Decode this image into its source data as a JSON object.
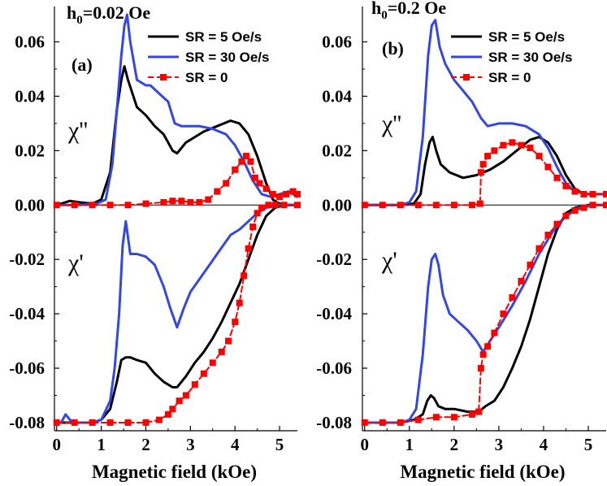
{
  "chart_data": [
    {
      "type": "line",
      "panel": "(a)",
      "title": "h0=0.02 Oe",
      "title_main": "h",
      "title_sub": "0",
      "title_rest": "=0.02 Oe",
      "xlabel": "Magnetic field (kOe)",
      "ylabel": "",
      "xlim": [
        -0.05,
        5.4
      ],
      "ylim": [
        -0.083,
        0.073
      ],
      "xticks": [
        0,
        1,
        2,
        3,
        4,
        5
      ],
      "yticks": [
        0.06,
        0.04,
        0.02,
        0.0,
        -0.02,
        -0.04,
        -0.06,
        -0.08
      ],
      "ytick_labels": [
        "0.06",
        "0.04",
        "0.02",
        "0.00",
        "-0.02",
        "-0.04",
        "-0.06",
        "-0.08"
      ],
      "annotations": [
        "χ''",
        "χ'"
      ],
      "legend": [
        "SR = 5 Oe/s",
        "SR = 30 Oe/s",
        "SR = 0"
      ],
      "series": [
        {
          "name": "SR = 5 Oe/s",
          "component": "chi2",
          "color": "#000000",
          "x": [
            0,
            0.3,
            0.5,
            0.8,
            1.0,
            1.2,
            1.35,
            1.45,
            1.52,
            1.6,
            1.8,
            2.0,
            2.2,
            2.4,
            2.6,
            2.7,
            2.9,
            3.1,
            3.3,
            3.6,
            3.9,
            4.1,
            4.3,
            4.5,
            4.7,
            4.85,
            5.0,
            5.2,
            5.4
          ],
          "y": [
            0,
            0.0015,
            0.001,
            0.0005,
            0.002,
            0.012,
            0.035,
            0.046,
            0.051,
            0.046,
            0.036,
            0.033,
            0.029,
            0.026,
            0.02,
            0.019,
            0.023,
            0.025,
            0.027,
            0.029,
            0.031,
            0.03,
            0.026,
            0.018,
            0.008,
            0.002,
            0.0005,
            0,
            0
          ]
        },
        {
          "name": "SR = 30 Oe/s",
          "component": "chi2",
          "color": "#3346e6",
          "x": [
            0,
            0.5,
            0.9,
            1.1,
            1.25,
            1.35,
            1.45,
            1.52,
            1.58,
            1.65,
            1.8,
            2.0,
            2.1,
            2.3,
            2.5,
            2.65,
            2.8,
            3.0,
            3.2,
            3.5,
            3.8,
            4.0,
            4.2,
            4.4,
            4.6,
            4.8,
            5.0,
            5.2,
            5.4
          ],
          "y": [
            0,
            0,
            0.0005,
            0.002,
            0.015,
            0.035,
            0.055,
            0.066,
            0.07,
            0.06,
            0.046,
            0.044,
            0.044,
            0.041,
            0.038,
            0.03,
            0.029,
            0.029,
            0.029,
            0.028,
            0.026,
            0.022,
            0.016,
            0.009,
            0.004,
            0.003,
            0.004,
            0.005,
            0.003
          ]
        },
        {
          "name": "SR = 0",
          "component": "chi2",
          "color": "#ff0000",
          "x": [
            0,
            0.4,
            0.8,
            1.2,
            1.6,
            2.0,
            2.4,
            2.6,
            2.8,
            3.0,
            3.2,
            3.4,
            3.6,
            3.8,
            4.0,
            4.15,
            4.25,
            4.35,
            4.45,
            4.55,
            4.7,
            4.85,
            5.0,
            5.15,
            5.3,
            5.4
          ],
          "y": [
            0,
            0,
            0,
            0,
            0,
            0.0005,
            0.001,
            0.0015,
            0.0015,
            0.001,
            0.001,
            0.002,
            0.005,
            0.008,
            0.013,
            0.016,
            0.018,
            0.016,
            0.01,
            0.008,
            0.006,
            0.004,
            0.003,
            0.004,
            0.005,
            0.004
          ]
        },
        {
          "name": "SR = 5 Oe/s",
          "component": "chi1",
          "color": "#000000",
          "x": [
            0,
            0.5,
            0.8,
            1.0,
            1.2,
            1.35,
            1.45,
            1.55,
            1.65,
            1.8,
            2.0,
            2.2,
            2.4,
            2.6,
            2.7,
            2.9,
            3.1,
            3.3,
            3.5,
            3.7,
            3.9,
            4.1,
            4.3,
            4.5,
            4.7,
            4.9,
            5.1,
            5.4
          ],
          "y": [
            -0.08,
            -0.08,
            -0.08,
            -0.079,
            -0.075,
            -0.065,
            -0.057,
            -0.056,
            -0.056,
            -0.057,
            -0.058,
            -0.062,
            -0.065,
            -0.067,
            -0.067,
            -0.063,
            -0.058,
            -0.054,
            -0.049,
            -0.043,
            -0.036,
            -0.029,
            -0.02,
            -0.011,
            -0.004,
            -0.001,
            0,
            0
          ]
        },
        {
          "name": "SR = 30 Oe/s",
          "component": "chi1",
          "color": "#3346e6",
          "x": [
            0,
            0.1,
            0.2,
            0.35,
            0.5,
            0.8,
            1.0,
            1.2,
            1.3,
            1.4,
            1.48,
            1.55,
            1.65,
            1.8,
            2.0,
            2.2,
            2.4,
            2.55,
            2.7,
            2.85,
            3.0,
            3.3,
            3.6,
            3.9,
            4.1,
            4.3,
            4.5,
            4.7,
            5.0,
            5.4
          ],
          "y": [
            -0.08,
            -0.08,
            -0.077,
            -0.08,
            -0.08,
            -0.08,
            -0.079,
            -0.072,
            -0.06,
            -0.04,
            -0.015,
            -0.006,
            -0.018,
            -0.018,
            -0.019,
            -0.022,
            -0.03,
            -0.038,
            -0.045,
            -0.038,
            -0.032,
            -0.025,
            -0.018,
            -0.011,
            -0.009,
            -0.006,
            -0.003,
            -0.001,
            0,
            0
          ]
        },
        {
          "name": "SR = 0",
          "component": "chi1",
          "color": "#ff0000",
          "x": [
            0,
            0.4,
            0.8,
            1.2,
            1.6,
            2.0,
            2.3,
            2.5,
            2.6,
            2.75,
            2.9,
            3.1,
            3.3,
            3.5,
            3.7,
            3.85,
            4.0,
            4.1,
            4.2,
            4.3,
            4.4,
            4.5,
            4.6,
            4.75,
            4.9,
            5.1,
            5.4
          ],
          "y": [
            -0.08,
            -0.08,
            -0.08,
            -0.08,
            -0.08,
            -0.08,
            -0.079,
            -0.077,
            -0.075,
            -0.072,
            -0.07,
            -0.066,
            -0.062,
            -0.058,
            -0.054,
            -0.05,
            -0.043,
            -0.036,
            -0.026,
            -0.016,
            -0.008,
            -0.003,
            -0.001,
            0,
            0,
            0,
            0
          ]
        }
      ]
    },
    {
      "type": "line",
      "panel": "(b)",
      "title": "h0=0.2 Oe",
      "title_main": "h",
      "title_sub": "0",
      "title_rest": "=0.2 Oe",
      "xlabel": "Magnetic field (kOe)",
      "ylabel": "",
      "xlim": [
        -0.05,
        5.4
      ],
      "ylim": [
        -0.083,
        0.073
      ],
      "xticks": [
        0,
        1,
        2,
        3,
        4,
        5
      ],
      "yticks": [
        0.06,
        0.04,
        0.02,
        0.0,
        -0.02,
        -0.04,
        -0.06,
        -0.08
      ],
      "ytick_labels": [
        "0.06",
        "0.04",
        "0.02",
        "0.00",
        "-0.02",
        "-0.04",
        "-0.06",
        "-0.08"
      ],
      "annotations": [
        "χ''",
        "χ'"
      ],
      "legend": [
        "SR = 5 Oe/s",
        "SR = 30 Oe/s",
        "SR = 0"
      ],
      "series": [
        {
          "name": "SR = 5 Oe/s",
          "component": "chi2",
          "color": "#000000",
          "x": [
            0,
            0.8,
            1.1,
            1.25,
            1.35,
            1.45,
            1.52,
            1.6,
            1.7,
            1.9,
            2.2,
            2.5,
            2.8,
            3.1,
            3.4,
            3.7,
            3.9,
            4.1,
            4.3,
            4.5,
            4.7,
            4.9,
            5.1,
            5.4
          ],
          "y": [
            0,
            0,
            0.0005,
            0.004,
            0.015,
            0.023,
            0.025,
            0.02,
            0.015,
            0.012,
            0.01,
            0.011,
            0.013,
            0.016,
            0.02,
            0.024,
            0.025,
            0.023,
            0.018,
            0.011,
            0.006,
            0.004,
            0.004,
            0.004
          ]
        },
        {
          "name": "SR = 30 Oe/s",
          "component": "chi2",
          "color": "#3346e6",
          "x": [
            0,
            0.8,
            1.0,
            1.15,
            1.3,
            1.42,
            1.5,
            1.58,
            1.68,
            1.8,
            2.0,
            2.2,
            2.4,
            2.6,
            2.75,
            3.0,
            3.3,
            3.6,
            3.9,
            4.1,
            4.3,
            4.5,
            4.7,
            5.0,
            5.4
          ],
          "y": [
            0,
            0,
            0.001,
            0.005,
            0.025,
            0.055,
            0.066,
            0.068,
            0.058,
            0.052,
            0.046,
            0.042,
            0.038,
            0.032,
            0.029,
            0.03,
            0.03,
            0.029,
            0.026,
            0.021,
            0.014,
            0.008,
            0.005,
            0.004,
            0.004
          ]
        },
        {
          "name": "SR = 0",
          "component": "chi2",
          "color": "#ff0000",
          "x": [
            0,
            0.4,
            0.8,
            1.2,
            1.6,
            2.0,
            2.4,
            2.58,
            2.6,
            2.65,
            2.75,
            2.9,
            3.1,
            3.3,
            3.5,
            3.7,
            3.9,
            4.1,
            4.3,
            4.5,
            4.7,
            4.9,
            5.1,
            5.4
          ],
          "y": [
            0,
            0,
            0,
            0,
            0,
            0,
            0,
            0.0005,
            0.012,
            0.015,
            0.018,
            0.02,
            0.022,
            0.023,
            0.022,
            0.021,
            0.018,
            0.014,
            0.01,
            0.007,
            0.005,
            0.004,
            0.004,
            0.004
          ]
        },
        {
          "name": "SR = 5 Oe/s",
          "component": "chi1",
          "color": "#000000",
          "x": [
            0,
            0.8,
            1.1,
            1.3,
            1.4,
            1.48,
            1.55,
            1.65,
            1.8,
            2.0,
            2.3,
            2.55,
            2.7,
            2.9,
            3.1,
            3.3,
            3.5,
            3.7,
            3.9,
            4.1,
            4.3,
            4.5,
            4.7,
            5.0,
            5.4
          ],
          "y": [
            -0.08,
            -0.08,
            -0.079,
            -0.077,
            -0.072,
            -0.07,
            -0.071,
            -0.074,
            -0.075,
            -0.075,
            -0.076,
            -0.076,
            -0.074,
            -0.072,
            -0.067,
            -0.06,
            -0.052,
            -0.042,
            -0.03,
            -0.018,
            -0.009,
            -0.003,
            -0.001,
            0,
            0
          ]
        },
        {
          "name": "SR = 30 Oe/s",
          "component": "chi1",
          "color": "#3346e6",
          "x": [
            0,
            0.8,
            1.0,
            1.15,
            1.3,
            1.42,
            1.5,
            1.58,
            1.65,
            1.75,
            1.9,
            2.1,
            2.3,
            2.5,
            2.65,
            2.8,
            3.0,
            3.3,
            3.6,
            3.9,
            4.2,
            4.5,
            4.8,
            5.1,
            5.4
          ],
          "y": [
            -0.08,
            -0.08,
            -0.079,
            -0.075,
            -0.055,
            -0.03,
            -0.02,
            -0.018,
            -0.022,
            -0.033,
            -0.04,
            -0.043,
            -0.046,
            -0.05,
            -0.054,
            -0.05,
            -0.045,
            -0.037,
            -0.028,
            -0.018,
            -0.01,
            -0.004,
            -0.001,
            0,
            0
          ]
        },
        {
          "name": "SR = 0",
          "component": "chi1",
          "color": "#ff0000",
          "x": [
            0,
            0.4,
            0.8,
            1.2,
            1.6,
            2.0,
            2.4,
            2.55,
            2.6,
            2.65,
            2.75,
            2.9,
            3.1,
            3.3,
            3.5,
            3.7,
            3.9,
            4.1,
            4.3,
            4.5,
            4.7,
            4.9,
            5.1,
            5.4
          ],
          "y": [
            -0.08,
            -0.08,
            -0.08,
            -0.079,
            -0.078,
            -0.078,
            -0.077,
            -0.076,
            -0.06,
            -0.055,
            -0.052,
            -0.047,
            -0.04,
            -0.034,
            -0.028,
            -0.022,
            -0.016,
            -0.011,
            -0.007,
            -0.004,
            -0.002,
            -0.001,
            0,
            0
          ]
        }
      ]
    }
  ]
}
